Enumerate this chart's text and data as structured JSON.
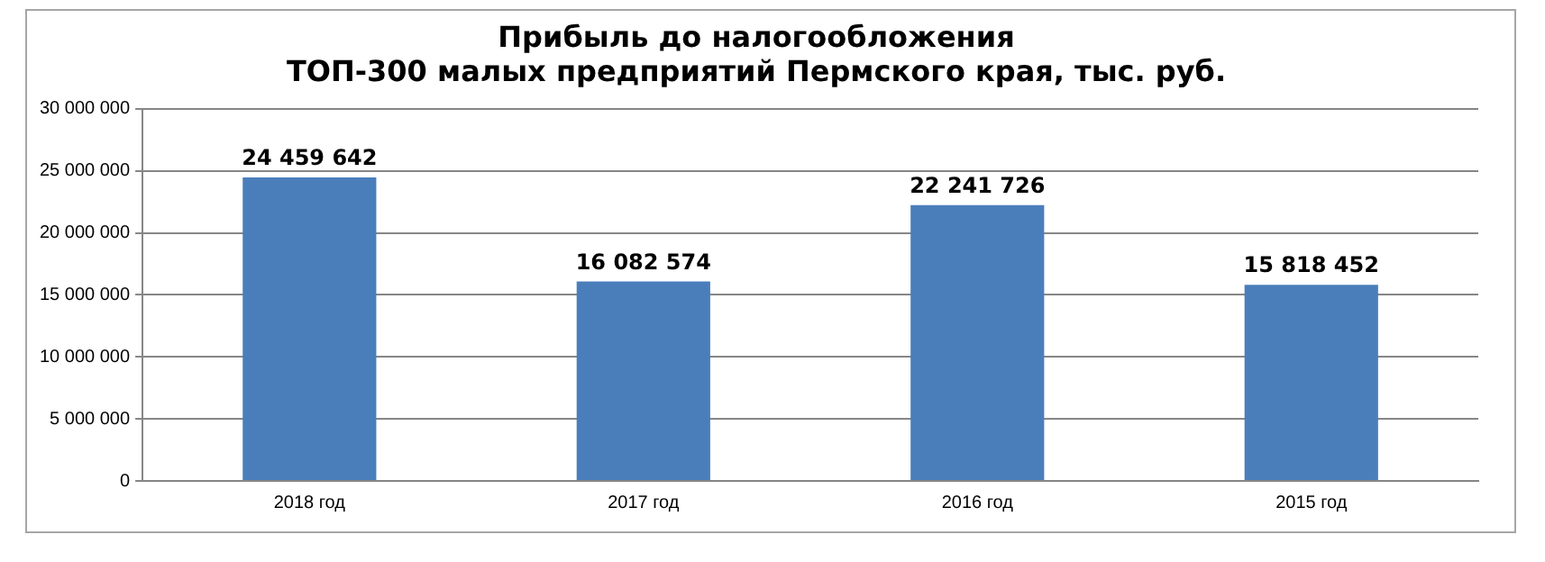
{
  "chart_data": {
    "type": "bar",
    "title": [
      "Прибыль до налогообложения",
      "ТОП-300 малых предприятий Пермского края, тыс. руб."
    ],
    "categories": [
      "2018 год",
      "2017 год",
      "2016 год",
      "2015 год"
    ],
    "values": [
      24459642,
      16082574,
      22241726,
      15818452
    ],
    "value_labels": [
      "24 459 642",
      "16 082 574",
      "22 241 726",
      "15 818 452"
    ],
    "color": "#4a7ebb",
    "ylim": [
      0,
      30000000
    ],
    "yticks": [
      {
        "value": 0,
        "label": "0"
      },
      {
        "value": 5000000,
        "label": "5 000 000"
      },
      {
        "value": 10000000,
        "label": "10 000 000"
      },
      {
        "value": 15000000,
        "label": "15 000 000"
      },
      {
        "value": 20000000,
        "label": "20 000 000"
      },
      {
        "value": 25000000,
        "label": "25 000 000"
      },
      {
        "value": 30000000,
        "label": "30 000 000"
      }
    ],
    "grid": "y",
    "legend": false
  }
}
